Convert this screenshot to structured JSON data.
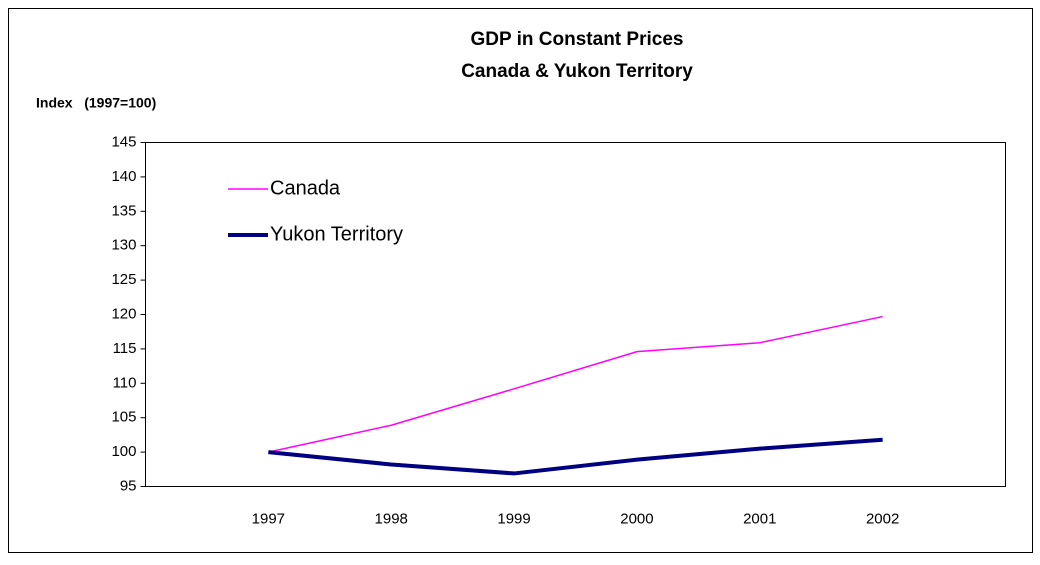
{
  "chart_data": {
    "type": "line",
    "title": [
      "GDP in Constant Prices",
      "Canada & Yukon Territory"
    ],
    "y_axis_label": "Index   (1997=100)",
    "categories": [
      "1997",
      "1998",
      "1999",
      "2000",
      "2001",
      "2002"
    ],
    "series": [
      {
        "name": "Canada",
        "color": "#ff00ff",
        "values": [
          100,
          103.9,
          109.2,
          114.6,
          115.9,
          119.7
        ]
      },
      {
        "name": "Yukon Territory",
        "color": "#000080",
        "values": [
          100,
          98.2,
          96.9,
          98.9,
          100.5,
          101.8
        ]
      }
    ],
    "ylim": [
      95,
      145
    ],
    "yticks": [
      95,
      100,
      105,
      110,
      115,
      120,
      125,
      130,
      135,
      140,
      145
    ],
    "grid": false,
    "legend": "upper left"
  }
}
